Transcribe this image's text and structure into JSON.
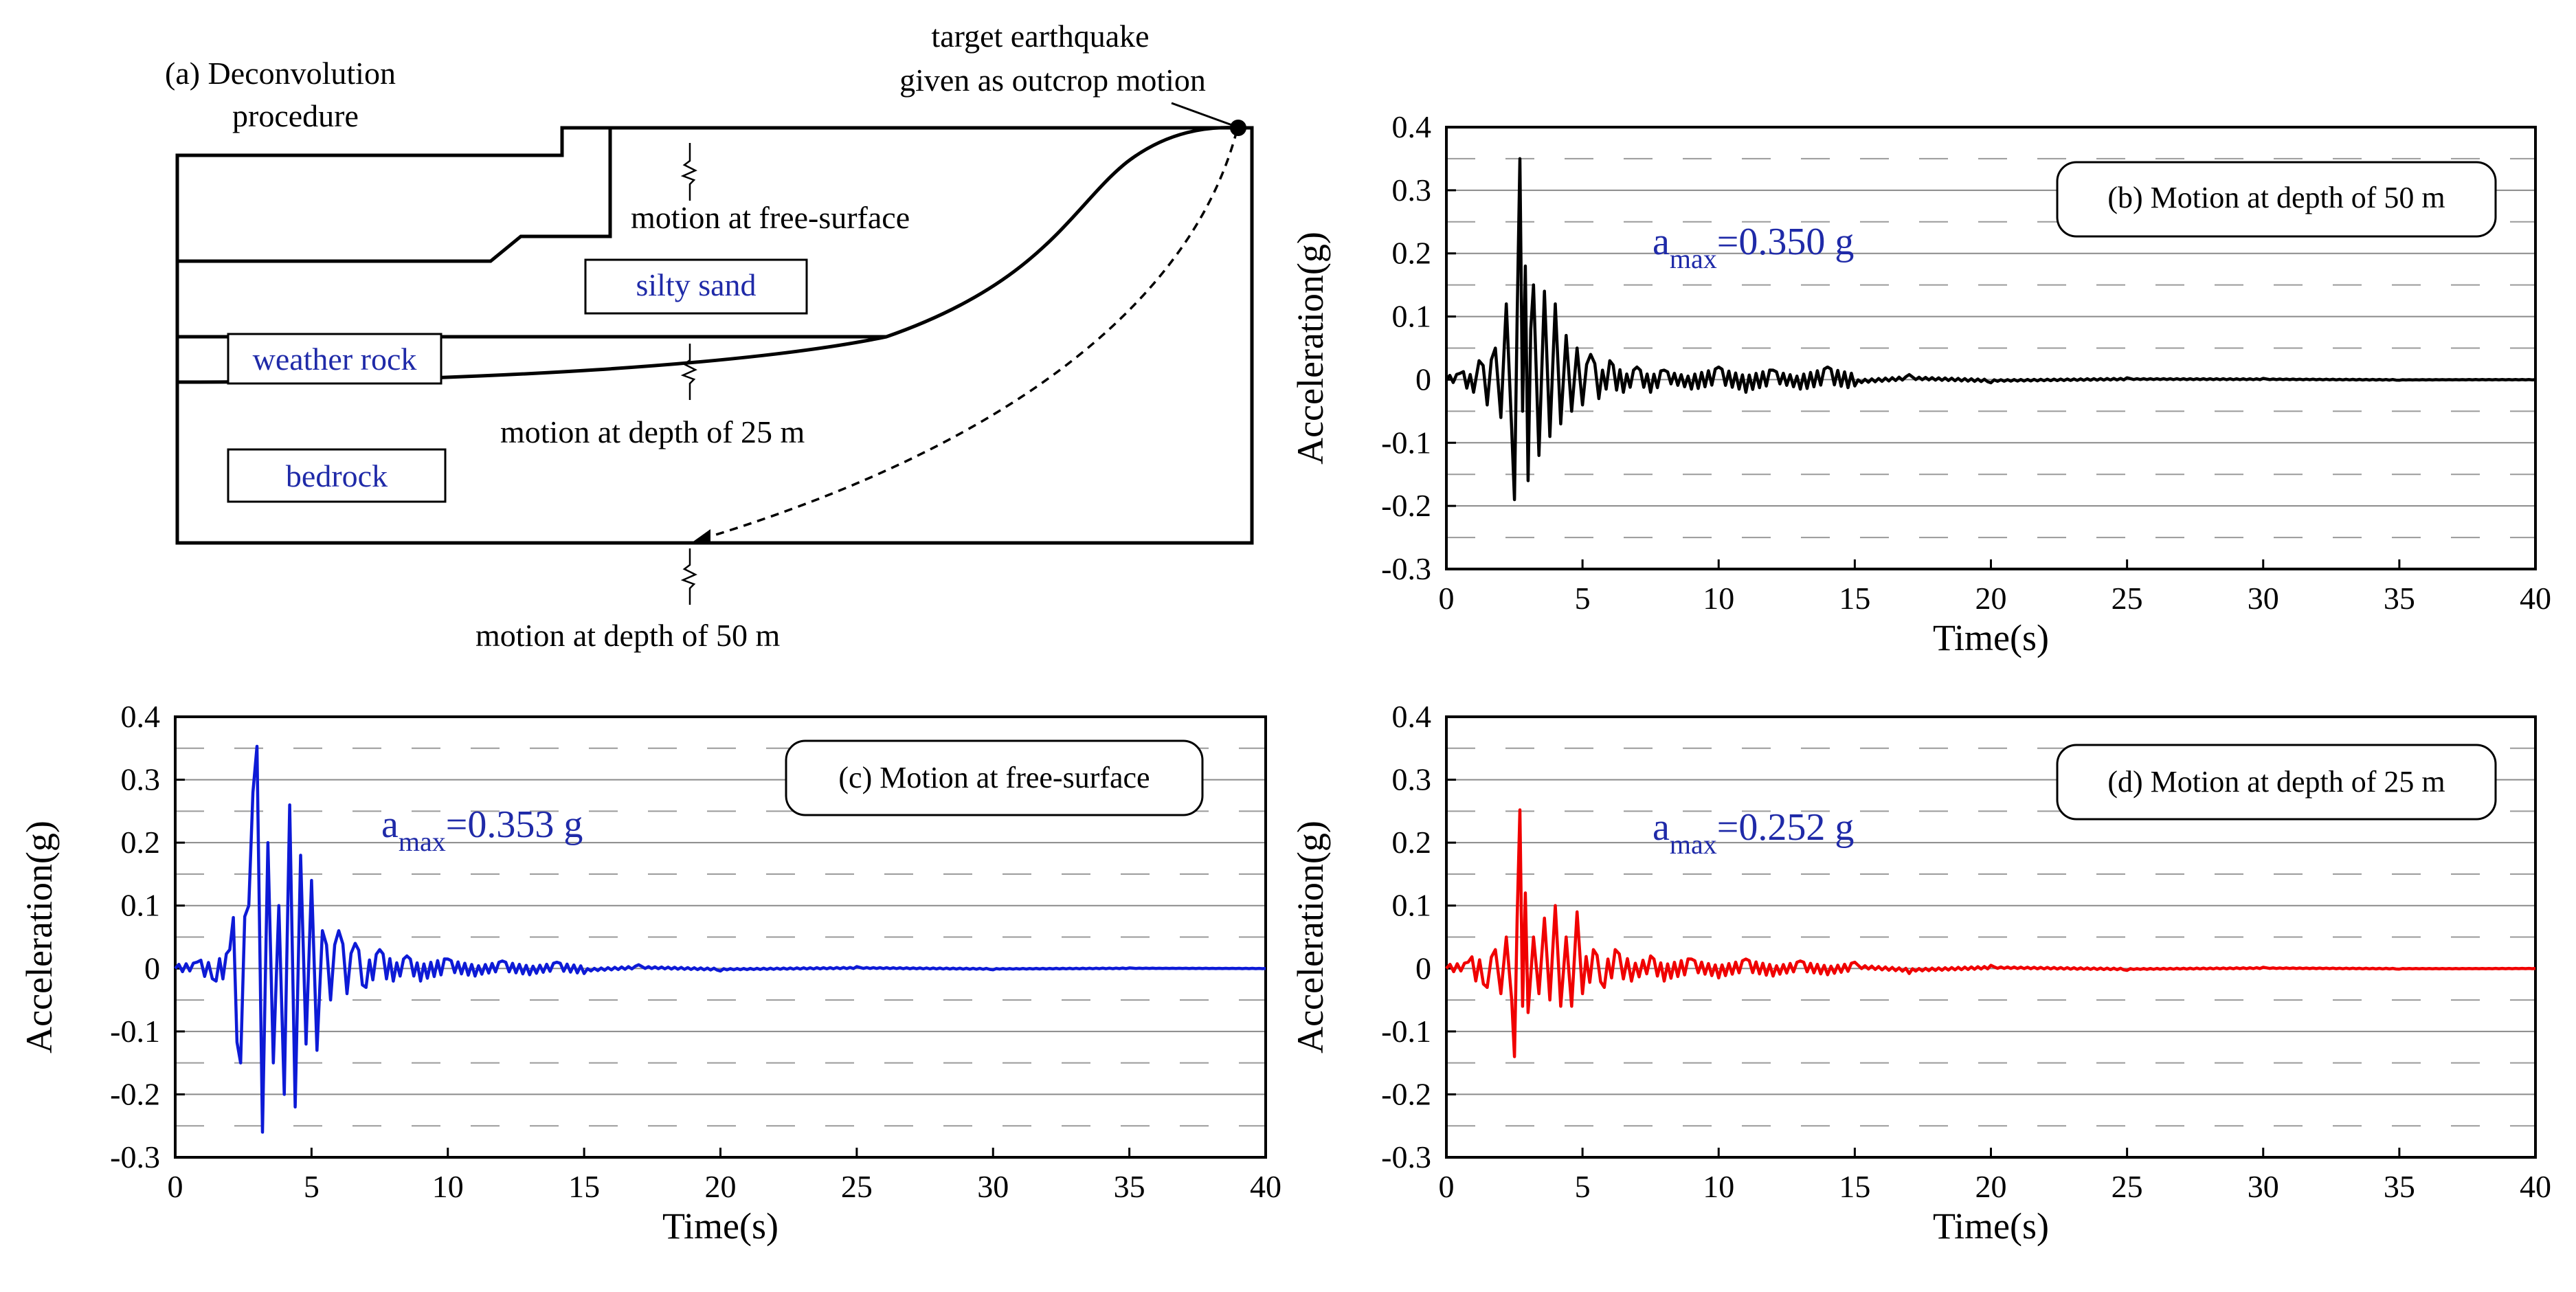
{
  "diagram": {
    "title_line1": "(a) Deconvolution",
    "title_line2": "procedure",
    "target_line1": "target earthquake",
    "target_line2": "given as outcrop motion",
    "free_surface_label": "motion at free-surface",
    "depth25_label": "motion at depth of 25 m",
    "depth50_label": "motion at depth of 50 m",
    "layer_silty_sand": "silty sand",
    "layer_weather_rock": "weather rock",
    "layer_bedrock": "bedrock"
  },
  "colors": {
    "black": "#000000",
    "blue": "#0d1ad6",
    "red": "#f00000",
    "label_blue": "#1f2aa8"
  },
  "chart_data": [
    {
      "id": "b",
      "type": "line",
      "title": "(b) Motion at depth of 50 m",
      "annotation_main": "a",
      "annotation_sub": "max",
      "annotation_value": "=0.350 g",
      "peak": 0.35,
      "xlabel": "Time(s)",
      "ylabel": "Acceleration(g)",
      "xlim": [
        0,
        40
      ],
      "ylim": [
        -0.3,
        0.4
      ],
      "xticks": [
        0,
        5,
        10,
        15,
        20,
        25,
        30,
        35,
        40
      ],
      "yticks": [
        -0.3,
        -0.2,
        -0.1,
        0,
        0.1,
        0.2,
        0.3,
        0.4
      ],
      "xtick_labels": [
        "0",
        "5",
        "10",
        "15",
        "20",
        "25",
        "30",
        "35",
        "40"
      ],
      "ytick_labels": [
        "-0.3",
        "-0.2",
        "-0.1",
        "0",
        "0.1",
        "0.2",
        "0.3",
        "0.4"
      ],
      "color": "#000000",
      "series": [
        {
          "name": "depth 50 m",
          "x": [
            0,
            0.5,
            1.0,
            1.2,
            1.5,
            1.8,
            2.0,
            2.2,
            2.4,
            2.5,
            2.6,
            2.7,
            2.8,
            2.9,
            3.0,
            3.1,
            3.2,
            3.4,
            3.6,
            3.8,
            4.0,
            4.2,
            4.4,
            4.6,
            4.8,
            5.0,
            5.3,
            5.6,
            6.0,
            6.5,
            7.0,
            7.5,
            8.0,
            9.0,
            10.0,
            11.0,
            12.0,
            13.0,
            14.0,
            15.0,
            17.0,
            20.0,
            25.0,
            30.0,
            35.0,
            40.0
          ],
          "y": [
            0,
            0.01,
            -0.02,
            0.03,
            -0.04,
            0.05,
            -0.06,
            0.12,
            -0.08,
            -0.19,
            0.1,
            0.35,
            -0.05,
            0.18,
            -0.16,
            0.08,
            0.15,
            -0.12,
            0.14,
            -0.09,
            0.12,
            -0.07,
            0.07,
            -0.05,
            0.05,
            -0.04,
            0.04,
            -0.03,
            0.03,
            -0.02,
            0.02,
            -0.02,
            0.015,
            -0.015,
            0.02,
            -0.02,
            0.015,
            -0.015,
            0.02,
            -0.01,
            0.008,
            -0.005,
            0.003,
            0.002,
            -0.001,
            0
          ]
        }
      ]
    },
    {
      "id": "c",
      "type": "line",
      "title": "(c) Motion at free-surface",
      "annotation_main": "a",
      "annotation_sub": "max",
      "annotation_value": "=0.353 g",
      "peak": 0.353,
      "xlabel": "Time(s)",
      "ylabel": "Acceleration(g)",
      "xlim": [
        0,
        40
      ],
      "ylim": [
        -0.3,
        0.4
      ],
      "xticks": [
        0,
        5,
        10,
        15,
        20,
        25,
        30,
        35,
        40
      ],
      "yticks": [
        -0.3,
        -0.2,
        -0.1,
        0,
        0.1,
        0.2,
        0.3,
        0.4
      ],
      "xtick_labels": [
        "0",
        "5",
        "10",
        "15",
        "20",
        "25",
        "30",
        "35",
        "40"
      ],
      "ytick_labels": [
        "-0.3",
        "-0.2",
        "-0.1",
        "0",
        "0.1",
        "0.2",
        "0.3",
        "0.4"
      ],
      "color": "#0d1ad6",
      "series": [
        {
          "name": "free-surface",
          "x": [
            0,
            0.8,
            1.5,
            2.0,
            2.4,
            2.7,
            3.0,
            3.2,
            3.4,
            3.6,
            3.8,
            4.0,
            4.2,
            4.4,
            4.6,
            4.8,
            5.0,
            5.2,
            5.4,
            5.7,
            6.0,
            6.3,
            6.6,
            7.0,
            7.5,
            8.0,
            8.5,
            9.0,
            10.0,
            11.0,
            12.0,
            13.0,
            14.0,
            15.0,
            17.0,
            20.0,
            25.0,
            30.0,
            35.0,
            40.0
          ],
          "y": [
            0,
            0.01,
            -0.02,
            0.03,
            -0.15,
            0.1,
            0.353,
            -0.26,
            0.2,
            -0.15,
            0.1,
            -0.2,
            0.26,
            -0.22,
            0.18,
            -0.12,
            0.14,
            -0.13,
            0.06,
            -0.05,
            0.06,
            -0.04,
            0.04,
            -0.03,
            0.03,
            -0.02,
            0.02,
            -0.02,
            0.015,
            -0.012,
            0.012,
            -0.01,
            0.01,
            -0.008,
            0.006,
            -0.004,
            0.003,
            -0.002,
            0.001,
            0
          ]
        }
      ]
    },
    {
      "id": "d",
      "type": "line",
      "title": "(d) Motion at depth of 25 m",
      "annotation_main": "a",
      "annotation_sub": "max",
      "annotation_value": "=0.252 g",
      "peak": 0.252,
      "xlabel": "Time(s)",
      "ylabel": "Acceleration(g)",
      "xlim": [
        0,
        40
      ],
      "ylim": [
        -0.3,
        0.4
      ],
      "xticks": [
        0,
        5,
        10,
        15,
        20,
        25,
        30,
        35,
        40
      ],
      "yticks": [
        -0.3,
        -0.2,
        -0.1,
        0,
        0.1,
        0.2,
        0.3,
        0.4
      ],
      "xtick_labels": [
        "0",
        "5",
        "10",
        "15",
        "20",
        "25",
        "30",
        "35",
        "40"
      ],
      "ytick_labels": [
        "-0.3",
        "-0.2",
        "-0.1",
        "0",
        "0.1",
        "0.2",
        "0.3",
        "0.4"
      ],
      "color": "#f00000",
      "series": [
        {
          "name": "depth 25 m",
          "x": [
            0,
            0.8,
            1.5,
            1.8,
            2.0,
            2.2,
            2.4,
            2.5,
            2.6,
            2.7,
            2.8,
            2.9,
            3.0,
            3.2,
            3.4,
            3.6,
            3.8,
            4.0,
            4.2,
            4.4,
            4.6,
            4.8,
            5.0,
            5.4,
            5.8,
            6.2,
            6.8,
            7.5,
            8.0,
            9.0,
            10.0,
            11.0,
            12.0,
            13.0,
            14.0,
            15.0,
            17.0,
            20.0,
            25.0,
            30.0,
            35.0,
            40.0
          ],
          "y": [
            0,
            0.01,
            -0.03,
            0.03,
            -0.04,
            0.05,
            -0.05,
            -0.14,
            0.08,
            0.252,
            -0.06,
            0.12,
            -0.07,
            0.05,
            -0.04,
            0.08,
            -0.05,
            0.1,
            -0.06,
            0.05,
            -0.06,
            0.09,
            -0.04,
            0.03,
            -0.03,
            0.03,
            -0.02,
            0.02,
            -0.02,
            0.015,
            -0.015,
            0.015,
            -0.012,
            0.012,
            -0.01,
            0.01,
            -0.008,
            0.005,
            -0.003,
            0.002,
            -0.001,
            0
          ]
        }
      ]
    }
  ]
}
